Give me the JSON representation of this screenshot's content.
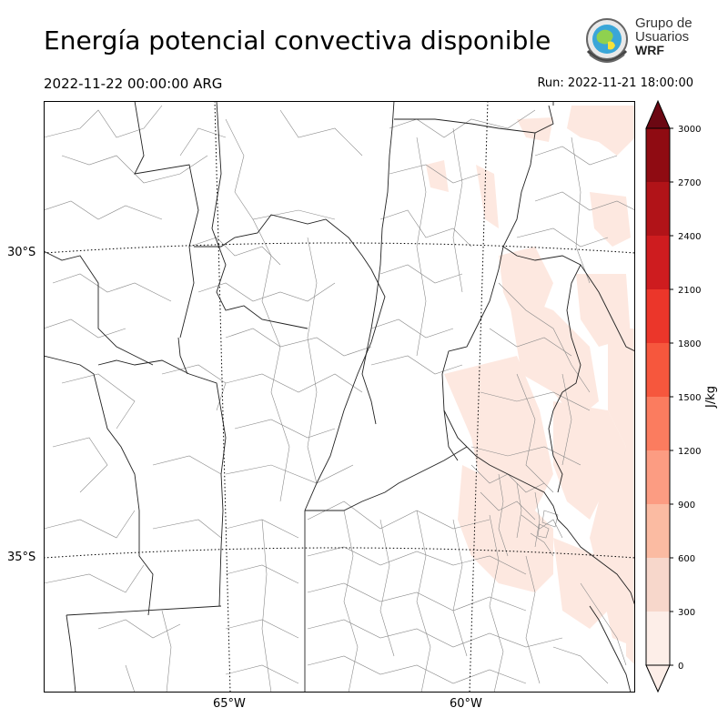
{
  "header": {
    "title": "Energía potencial convectiva disponible",
    "valid_time": "2022-11-22 00:00:00 ARG",
    "run_time": "Run: 2022-11-21 18:00:00"
  },
  "logo": {
    "line1": "Grupo de",
    "line2": "Usuarios",
    "line3": "WRF"
  },
  "map": {
    "lat_labels": [
      "30°S",
      "35°S"
    ],
    "lon_labels": [
      "65°W",
      "60°W"
    ],
    "colors": {
      "background": "#ffffff",
      "border": "#000000",
      "province": "#222222",
      "department": "#8a8a8a",
      "cape_low": "#fde8e0"
    }
  },
  "colorbar": {
    "label": "J/kg",
    "ticks": [
      "0",
      "300",
      "600",
      "900",
      "1200",
      "1500",
      "1800",
      "2100",
      "2400",
      "2700",
      "3000"
    ],
    "colors": [
      "#fdeee8",
      "#f7d7cb",
      "#fbbba2",
      "#fc9c82",
      "#fb7c5f",
      "#f6573d",
      "#eb362a",
      "#ce1c1f",
      "#b11318",
      "#8f0b12",
      "#6b0712"
    ]
  }
}
